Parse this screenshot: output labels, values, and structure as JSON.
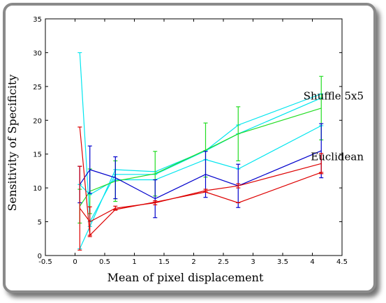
{
  "chart_data": {
    "type": "line",
    "xlabel": "Mean of pixel displacement",
    "ylabel": "Sensitivity of Specificity",
    "xlim": [
      -0.5,
      4.5
    ],
    "ylim": [
      0,
      35
    ],
    "xticks": [
      "-0.5",
      "0",
      "0.5",
      "1",
      "1.5",
      "2",
      "2.5",
      "3",
      "3.5",
      "4",
      "4.5"
    ],
    "yticks": [
      "0",
      "5",
      "10",
      "15",
      "20",
      "25",
      "30",
      "35"
    ],
    "grid": false,
    "annotations": [
      {
        "text": "Shuffle 5x5",
        "x": 4.15,
        "y": 23.6
      },
      {
        "text": "Euclidean",
        "x": 4.15,
        "y": 14.6
      }
    ],
    "series": [
      {
        "color": "#00e5ee",
        "points": [
          [
            0.08,
            1.0
          ],
          [
            0.25,
            4.3
          ],
          [
            0.68,
            12.7
          ],
          [
            1.35,
            12.4
          ],
          [
            2.2,
            15.5
          ],
          [
            2.75,
            19.3
          ],
          [
            4.15,
            23.9
          ]
        ]
      },
      {
        "color": "#00e5ee",
        "points": [
          [
            0.08,
            30.0
          ],
          [
            0.25,
            5.0
          ],
          [
            0.68,
            12.0
          ],
          [
            1.35,
            12.0
          ],
          [
            2.2,
            15.5
          ],
          [
            2.75,
            18.0
          ],
          [
            4.15,
            23.3
          ]
        ]
      },
      {
        "color": "#00e5ee",
        "points": [
          [
            0.08,
            10.5
          ],
          [
            0.25,
            9.0
          ],
          [
            0.68,
            11.2
          ],
          [
            1.35,
            11.2
          ],
          [
            2.2,
            14.2
          ],
          [
            2.75,
            12.8
          ],
          [
            4.15,
            19.2
          ]
        ]
      },
      {
        "color": "#22dd22",
        "points": [
          [
            0.08,
            7.3
          ],
          [
            0.25,
            9.5
          ],
          [
            0.68,
            11.0
          ],
          [
            1.35,
            12.1
          ],
          [
            2.2,
            15.6
          ],
          [
            2.75,
            18.0
          ],
          [
            4.15,
            21.8
          ]
        ],
        "errors": [
          2.5,
          3.3,
          3.0,
          3.3,
          4.0,
          4.0,
          4.7
        ]
      },
      {
        "color": "#0000cc",
        "points": [
          [
            0.08,
            10.5
          ],
          [
            0.25,
            12.7
          ],
          [
            0.68,
            11.5
          ],
          [
            1.35,
            8.4
          ],
          [
            2.2,
            12.0
          ],
          [
            2.75,
            10.3
          ],
          [
            4.15,
            15.5
          ]
        ],
        "errors": [
          2.7,
          3.5,
          3.1,
          2.8,
          3.4,
          3.2,
          4.0
        ]
      },
      {
        "color": "#dd0000",
        "points": [
          [
            0.08,
            19.0
          ],
          [
            0.25,
            3.0
          ],
          [
            0.68,
            6.8
          ],
          [
            1.35,
            7.9
          ],
          [
            2.2,
            9.4
          ],
          [
            2.75,
            7.8
          ],
          [
            4.15,
            12.3
          ]
        ]
      },
      {
        "color": "#dd0000",
        "points": [
          [
            0.08,
            7.0
          ],
          [
            0.25,
            5.0
          ],
          [
            0.68,
            7.0
          ],
          [
            1.35,
            7.8
          ],
          [
            2.2,
            9.6
          ],
          [
            2.75,
            10.3
          ],
          [
            4.15,
            13.6
          ]
        ],
        "errors": [
          6.2,
          2.2,
          0.3,
          0.3,
          0.2,
          0.3,
          1.5
        ]
      }
    ]
  }
}
